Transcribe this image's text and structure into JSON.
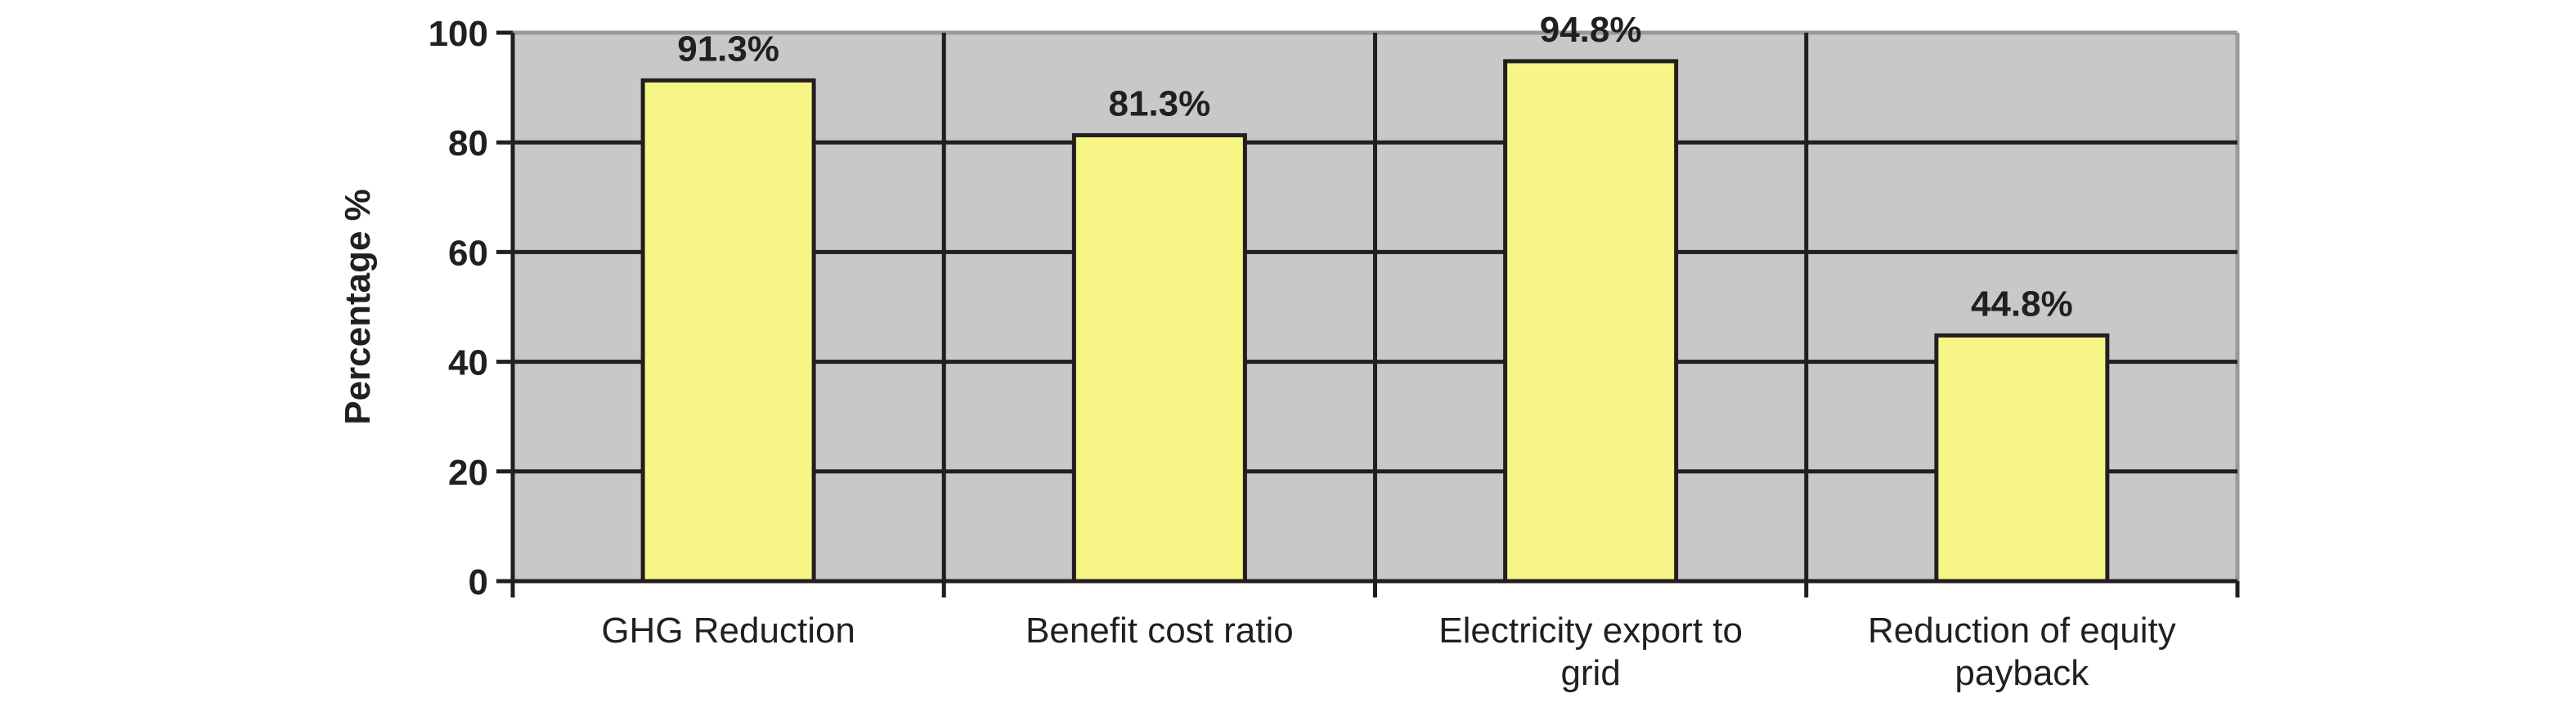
{
  "chart_data": {
    "type": "bar",
    "title": "",
    "xlabel": "",
    "ylabel": "Percentage %",
    "ylim": [
      0,
      100
    ],
    "yticks": [
      0,
      20,
      40,
      60,
      80,
      100
    ],
    "grid": true,
    "categories": [
      [
        "GHG Reduction"
      ],
      [
        "Benefit cost ratio"
      ],
      [
        "Electricity export to",
        "grid"
      ],
      [
        "Reduction of equity",
        "payback"
      ]
    ],
    "values": [
      91.3,
      81.3,
      94.8,
      44.8
    ],
    "data_labels": [
      "91.3%",
      "81.3%",
      "94.8%",
      "44.8%"
    ],
    "colors": {
      "bar": "#f7f585",
      "plot_bg": "#c8c8c8",
      "line": "#231f20"
    }
  }
}
